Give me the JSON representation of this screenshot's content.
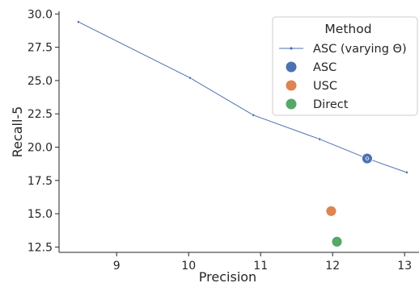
{
  "chart_data": {
    "type": "scatter",
    "title": "",
    "xlabel": "Precision",
    "ylabel": "Recall-5",
    "xlim": [
      8.2,
      13.2
    ],
    "ylim": [
      12.1,
      30.2
    ],
    "xticks": [
      9,
      10,
      11,
      12,
      13
    ],
    "yticks": [
      12.5,
      15.0,
      17.5,
      20.0,
      22.5,
      25.0,
      27.5,
      30.0
    ],
    "ytick_labels": [
      "12.5",
      "15.0",
      "17.5",
      "20.0",
      "22.5",
      "25.0",
      "27.5",
      "30.0"
    ],
    "grid": false,
    "legend": {
      "title": "Method",
      "placement": "top-right"
    },
    "series": [
      {
        "name": "ASC (varying Θ)",
        "kind": "line",
        "color": "#4c72b0",
        "x": [
          8.47,
          10.02,
          10.9,
          11.82,
          12.48,
          13.03
        ],
        "y": [
          29.4,
          25.2,
          22.4,
          20.6,
          19.15,
          18.1
        ]
      },
      {
        "name": "ASC",
        "kind": "point",
        "color": "#4c72b0",
        "x": [
          12.48
        ],
        "y": [
          19.15
        ]
      },
      {
        "name": "USC",
        "kind": "point",
        "color": "#dd8452",
        "x": [
          11.98
        ],
        "y": [
          15.2
        ]
      },
      {
        "name": "Direct",
        "kind": "point",
        "color": "#55a868",
        "x": [
          12.06
        ],
        "y": [
          12.9
        ]
      }
    ]
  }
}
